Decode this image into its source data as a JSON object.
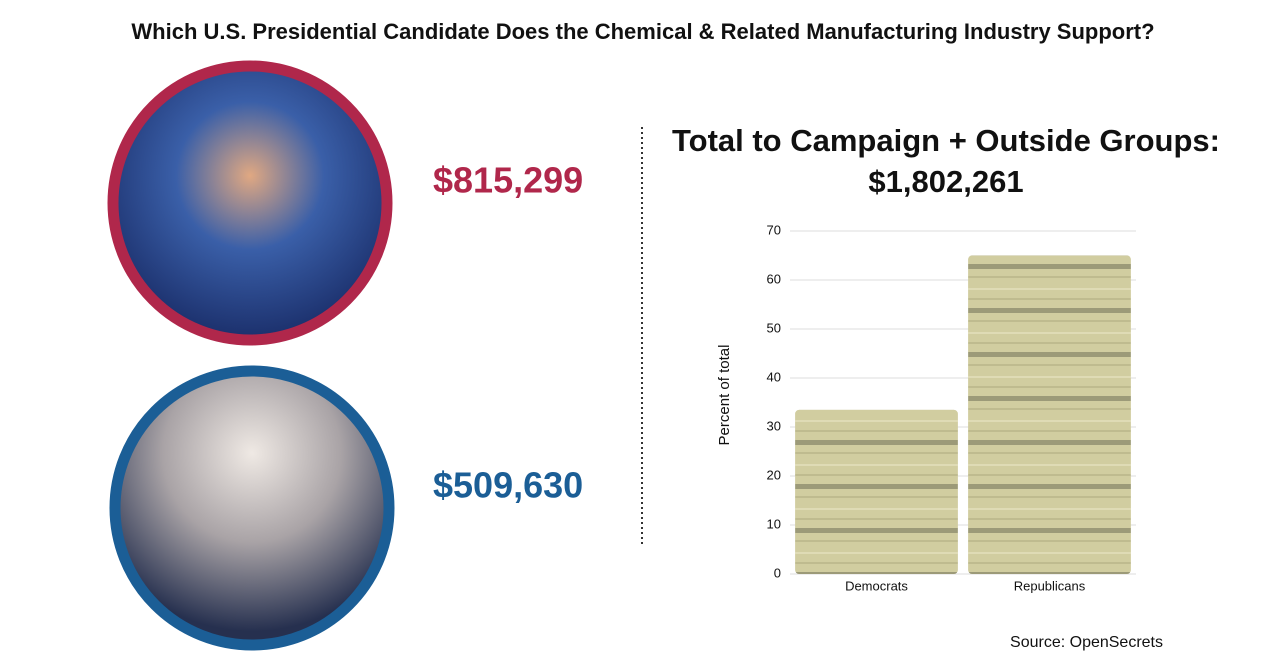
{
  "title": "Which U.S. Presidential Candidate Does the Chemical & Related Manufacturing Industry Support?",
  "candidates": [
    {
      "amount": "$815,299",
      "color": "#b0274b"
    },
    {
      "amount": "$509,630",
      "color": "#1b5e96"
    }
  ],
  "source": "Source: OpenSecrets",
  "chart_data": {
    "type": "bar",
    "title": "Total to Campaign + Outside Groups:",
    "subtitle": "$1,802,261",
    "categories": [
      "Democrats",
      "Republicans"
    ],
    "values": [
      33.5,
      65
    ],
    "color": "#cfcb9c",
    "ylabel": "Percent of total",
    "ylim": [
      0,
      70
    ],
    "yticks": [
      0,
      10,
      20,
      30,
      40,
      50,
      60,
      70
    ],
    "grid": true
  }
}
